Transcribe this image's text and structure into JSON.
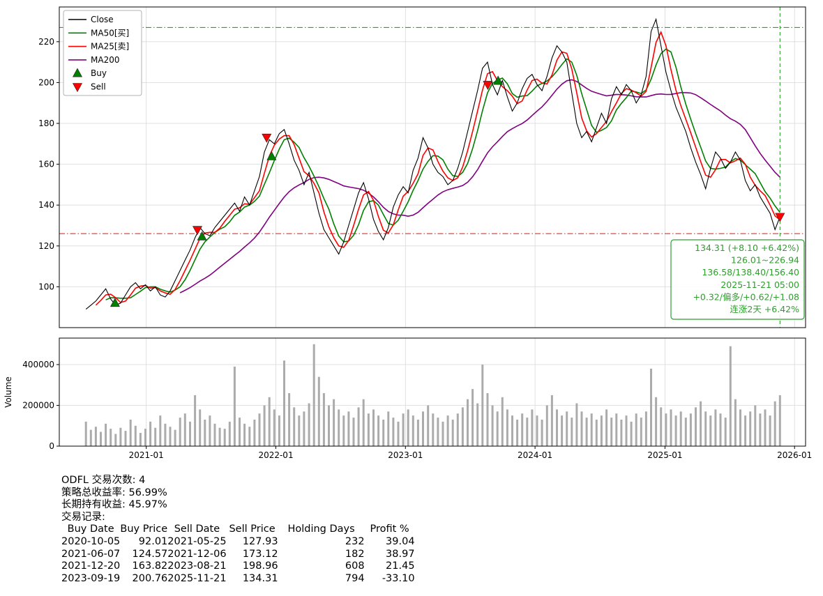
{
  "chart_data": {
    "type": "line",
    "title": "",
    "x_axis": {
      "start": "2020-05-01",
      "end": "2026-02-01",
      "ticks": [
        {
          "date": "2021-01-01",
          "label": "2021-01"
        },
        {
          "date": "2022-01-01",
          "label": "2022-01"
        },
        {
          "date": "2023-01-01",
          "label": "2023-01"
        },
        {
          "date": "2024-01-01",
          "label": "2024-01"
        },
        {
          "date": "2025-01-01",
          "label": "2025-01"
        },
        {
          "date": "2026-01-01",
          "label": "2026-01"
        }
      ]
    },
    "price_axis": {
      "min": 80,
      "max": 237,
      "ticks": [
        100,
        120,
        140,
        160,
        180,
        200,
        220
      ]
    },
    "volume_axis": {
      "min": 0,
      "max": 530000,
      "label": "Volume",
      "ticks": [
        {
          "value": 0,
          "label": "0"
        },
        {
          "value": 200000,
          "label": "200000"
        },
        {
          "value": 400000,
          "label": "400000"
        }
      ]
    },
    "series": {
      "first_date": "2020-07-15",
      "last_date": "2025-11-21",
      "close": [
        89,
        91,
        93,
        96,
        99,
        94,
        91,
        92,
        96,
        100,
        102,
        99,
        101,
        98,
        100,
        96,
        95,
        98,
        103,
        108,
        113,
        118,
        124,
        129,
        126,
        125,
        129,
        132,
        135,
        138,
        141,
        137,
        144,
        140,
        147,
        154,
        166,
        172,
        170,
        175,
        177,
        170,
        162,
        157,
        150,
        156,
        146,
        136,
        128,
        124,
        120,
        116,
        122,
        130,
        138,
        146,
        151,
        143,
        133,
        127,
        123,
        129,
        139,
        145,
        149,
        146,
        157,
        163,
        173,
        168,
        160,
        156,
        154,
        150,
        152,
        158,
        166,
        176,
        186,
        196,
        207,
        210,
        199,
        194,
        201,
        193,
        186,
        190,
        197,
        202,
        204,
        199,
        196,
        203,
        212,
        218,
        215,
        210,
        195,
        180,
        173,
        176,
        171,
        178,
        185,
        180,
        192,
        198,
        194,
        199,
        196,
        190,
        194,
        203,
        225,
        231,
        218,
        205,
        196,
        188,
        182,
        176,
        168,
        161,
        155,
        148,
        158,
        166,
        163,
        158,
        161,
        166,
        162,
        152,
        147,
        150,
        144,
        140,
        136,
        128,
        134.31
      ],
      "volume": [
        120000,
        80000,
        95000,
        70000,
        110000,
        85000,
        60000,
        90000,
        75000,
        130000,
        100000,
        65000,
        85000,
        120000,
        90000,
        150000,
        110000,
        95000,
        80000,
        140000,
        160000,
        120000,
        250000,
        180000,
        130000,
        150000,
        110000,
        90000,
        85000,
        120000,
        390000,
        140000,
        110000,
        95000,
        130000,
        160000,
        200000,
        240000,
        180000,
        150000,
        420000,
        260000,
        190000,
        150000,
        170000,
        210000,
        500000,
        340000,
        260000,
        200000,
        230000,
        180000,
        150000,
        170000,
        140000,
        190000,
        230000,
        160000,
        180000,
        150000,
        130000,
        170000,
        140000,
        120000,
        160000,
        180000,
        150000,
        130000,
        170000,
        200000,
        160000,
        140000,
        120000,
        150000,
        130000,
        160000,
        190000,
        230000,
        280000,
        210000,
        400000,
        260000,
        200000,
        170000,
        240000,
        180000,
        150000,
        130000,
        160000,
        140000,
        180000,
        150000,
        130000,
        200000,
        250000,
        180000,
        150000,
        170000,
        140000,
        210000,
        170000,
        140000,
        160000,
        130000,
        150000,
        180000,
        140000,
        160000,
        130000,
        150000,
        120000,
        160000,
        140000,
        170000,
        380000,
        240000,
        190000,
        160000,
        180000,
        150000,
        170000,
        140000,
        160000,
        190000,
        220000,
        170000,
        150000,
        180000,
        160000,
        140000,
        490000,
        230000,
        180000,
        150000,
        170000,
        200000,
        160000,
        180000,
        150000,
        220000,
        250000
      ]
    },
    "close_color": "#000000",
    "moving_averages": [
      {
        "name": "MA50[买]",
        "color": "#008000",
        "window_pts": 5
      },
      {
        "name": "MA25[卖]",
        "color": "#ff0000",
        "window_pts": 3
      },
      {
        "name": "MA200",
        "color": "#800080",
        "window_pts": 20
      }
    ],
    "hlines": [
      {
        "value": 226.94,
        "color": "#2e9e2e",
        "dash": "dashdot"
      },
      {
        "value": 126.01,
        "color": "#ff2222",
        "dash": "dashdot"
      }
    ],
    "vline": {
      "date": "2025-11-21",
      "color": "#2e9e2e",
      "dash": "dashed"
    },
    "volume_color": "#ababab",
    "grid_color": "#d9d9d9",
    "legend": [
      {
        "label": "Close",
        "type": "line",
        "color": "#000000"
      },
      {
        "label": "MA50[买]",
        "type": "line",
        "color": "#008000"
      },
      {
        "label": "MA25[卖]",
        "type": "line",
        "color": "#ff0000"
      },
      {
        "label": "MA200",
        "type": "line",
        "color": "#800080"
      },
      {
        "label": "Buy",
        "type": "triangle-up",
        "color": "#008000"
      },
      {
        "label": "Sell",
        "type": "triangle-down",
        "color": "#ff0000"
      }
    ],
    "annotation": {
      "color": "#2e9e2e",
      "lines": [
        "134.31 (+8.10 +6.42%)",
        "126.01~226.94",
        "136.58/138.40/156.40",
        "2025-11-21 05:00",
        "+0.32/偏多/+0.62/+1.08",
        "连涨2天 +6.42%"
      ]
    },
    "trades": [
      {
        "buy_date": "2020-10-05",
        "buy_price": "92.01",
        "sell_date": "2021-05-25",
        "sell_price": "127.93",
        "holding_days": "232",
        "profit_pct": "39.04"
      },
      {
        "buy_date": "2021-06-07",
        "buy_price": "124.57",
        "sell_date": "2021-12-06",
        "sell_price": "173.12",
        "holding_days": "182",
        "profit_pct": "38.97"
      },
      {
        "buy_date": "2021-12-20",
        "buy_price": "163.82",
        "sell_date": "2023-08-21",
        "sell_price": "198.96",
        "holding_days": "608",
        "profit_pct": "21.45"
      },
      {
        "buy_date": "2023-09-19",
        "buy_price": "200.76",
        "sell_date": "2025-11-21",
        "sell_price": "134.31",
        "holding_days": "794",
        "profit_pct": "-33.10"
      }
    ]
  },
  "summary": {
    "lines": [
      "ODFL 交易次数: 4",
      "策略总收益率: 56.99%",
      "长期持有收益: 45.97%",
      "交易记录:"
    ],
    "table_headers": [
      "Buy Date",
      "Buy Price",
      "Sell Date",
      "Sell Price",
      "Holding Days",
      "Profit %"
    ]
  }
}
